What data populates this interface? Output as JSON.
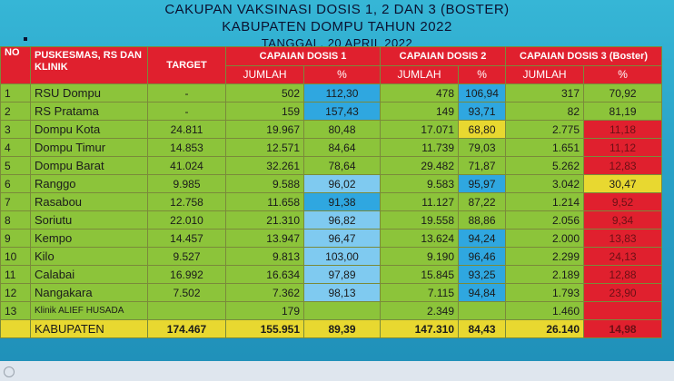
{
  "title": {
    "line1": "CAKUPAN VAKSINASI DOSIS 1, 2 DAN 3 (BOSTER)",
    "line2": "KABUPATEN DOMPU TAHUN 2022",
    "line3": "TANGGAL, 20 APRIL 2022"
  },
  "headers": {
    "no": "NO",
    "puskesmas": "PUSKESMAS, RS DAN KLINIK",
    "target": "TARGET",
    "dosis1": "CAPAIAN DOSIS 1",
    "dosis2": "CAPAIAN DOSIS 2",
    "dosis3": "CAPAIAN DOSIS 3 (Boster)",
    "jumlah": "JUMLAH",
    "pct": "%"
  },
  "rows": [
    {
      "no": "1",
      "name": "RSU Dompu",
      "target": "-",
      "d1": "502",
      "p1": "112,30",
      "d2": "478",
      "p2": "106,94",
      "d3": "317",
      "p3": "70,92"
    },
    {
      "no": "2",
      "name": "RS Pratama",
      "target": "-",
      "d1": "159",
      "p1": "157,43",
      "d2": "149",
      "p2": "93,71",
      "d3": "82",
      "p3": "81,19"
    },
    {
      "no": "3",
      "name": "Dompu Kota",
      "target": "24.811",
      "d1": "19.967",
      "p1": "80,48",
      "d2": "17.071",
      "p2": "68,80",
      "d3": "2.775",
      "p3": "11,18"
    },
    {
      "no": "4",
      "name": "Dompu Timur",
      "target": "14.853",
      "d1": "12.571",
      "p1": "84,64",
      "d2": "11.739",
      "p2": "79,03",
      "d3": "1.651",
      "p3": "11,12"
    },
    {
      "no": "5",
      "name": "Dompu Barat",
      "target": "41.024",
      "d1": "32.261",
      "p1": "78,64",
      "d2": "29.482",
      "p2": "71,87",
      "d3": "5.262",
      "p3": "12,83"
    },
    {
      "no": "6",
      "name": "Ranggo",
      "target": "9.985",
      "d1": "9.588",
      "p1": "96,02",
      "d2": "9.583",
      "p2": "95,97",
      "d3": "3.042",
      "p3": "30,47"
    },
    {
      "no": "7",
      "name": "Rasabou",
      "target": "12.758",
      "d1": "11.658",
      "p1": "91,38",
      "d2": "11.127",
      "p2": "87,22",
      "d3": "1.214",
      "p3": "9,52"
    },
    {
      "no": "8",
      "name": "Soriutu",
      "target": "22.010",
      "d1": "21.310",
      "p1": "96,82",
      "d2": "19.558",
      "p2": "88,86",
      "d3": "2.056",
      "p3": "9,34"
    },
    {
      "no": "9",
      "name": "Kempo",
      "target": "14.457",
      "d1": "13.947",
      "p1": "96,47",
      "d2": "13.624",
      "p2": "94,24",
      "d3": "2.000",
      "p3": "13,83"
    },
    {
      "no": "10",
      "name": "Kilo",
      "target": "9.527",
      "d1": "9.813",
      "p1": "103,00",
      "d2": "9.190",
      "p2": "96,46",
      "d3": "2.299",
      "p3": "24,13"
    },
    {
      "no": "11",
      "name": "Calabai",
      "target": "16.992",
      "d1": "16.634",
      "p1": "97,89",
      "d2": "15.845",
      "p2": "93,25",
      "d3": "2.189",
      "p3": "12,88"
    },
    {
      "no": "12",
      "name": "Nangakara",
      "target": "7.502",
      "d1": "7.362",
      "p1": "98,13",
      "d2": "7.115",
      "p2": "94,84",
      "d3": "1.793",
      "p3": "23,90"
    },
    {
      "no": "13",
      "name": "Klinik ALIEF HUSADA",
      "target": "",
      "d1": "179",
      "p1": "",
      "d2": "2.349",
      "p2": "",
      "d3": "1.460",
      "p3": ""
    }
  ],
  "total": {
    "name": "KABUPATEN",
    "target": "174.467",
    "d1": "155.951",
    "p1": "89,39",
    "d2": "147.310",
    "p2": "84,43",
    "d3": "26.140",
    "p3": "14,98"
  },
  "colors": {
    "header": "#e0202e",
    "cell": "#8cc43a",
    "blue": "#2fa7e0",
    "light_blue": "#7fcaf0",
    "yellow": "#e8d830",
    "red": "#e0202e"
  }
}
